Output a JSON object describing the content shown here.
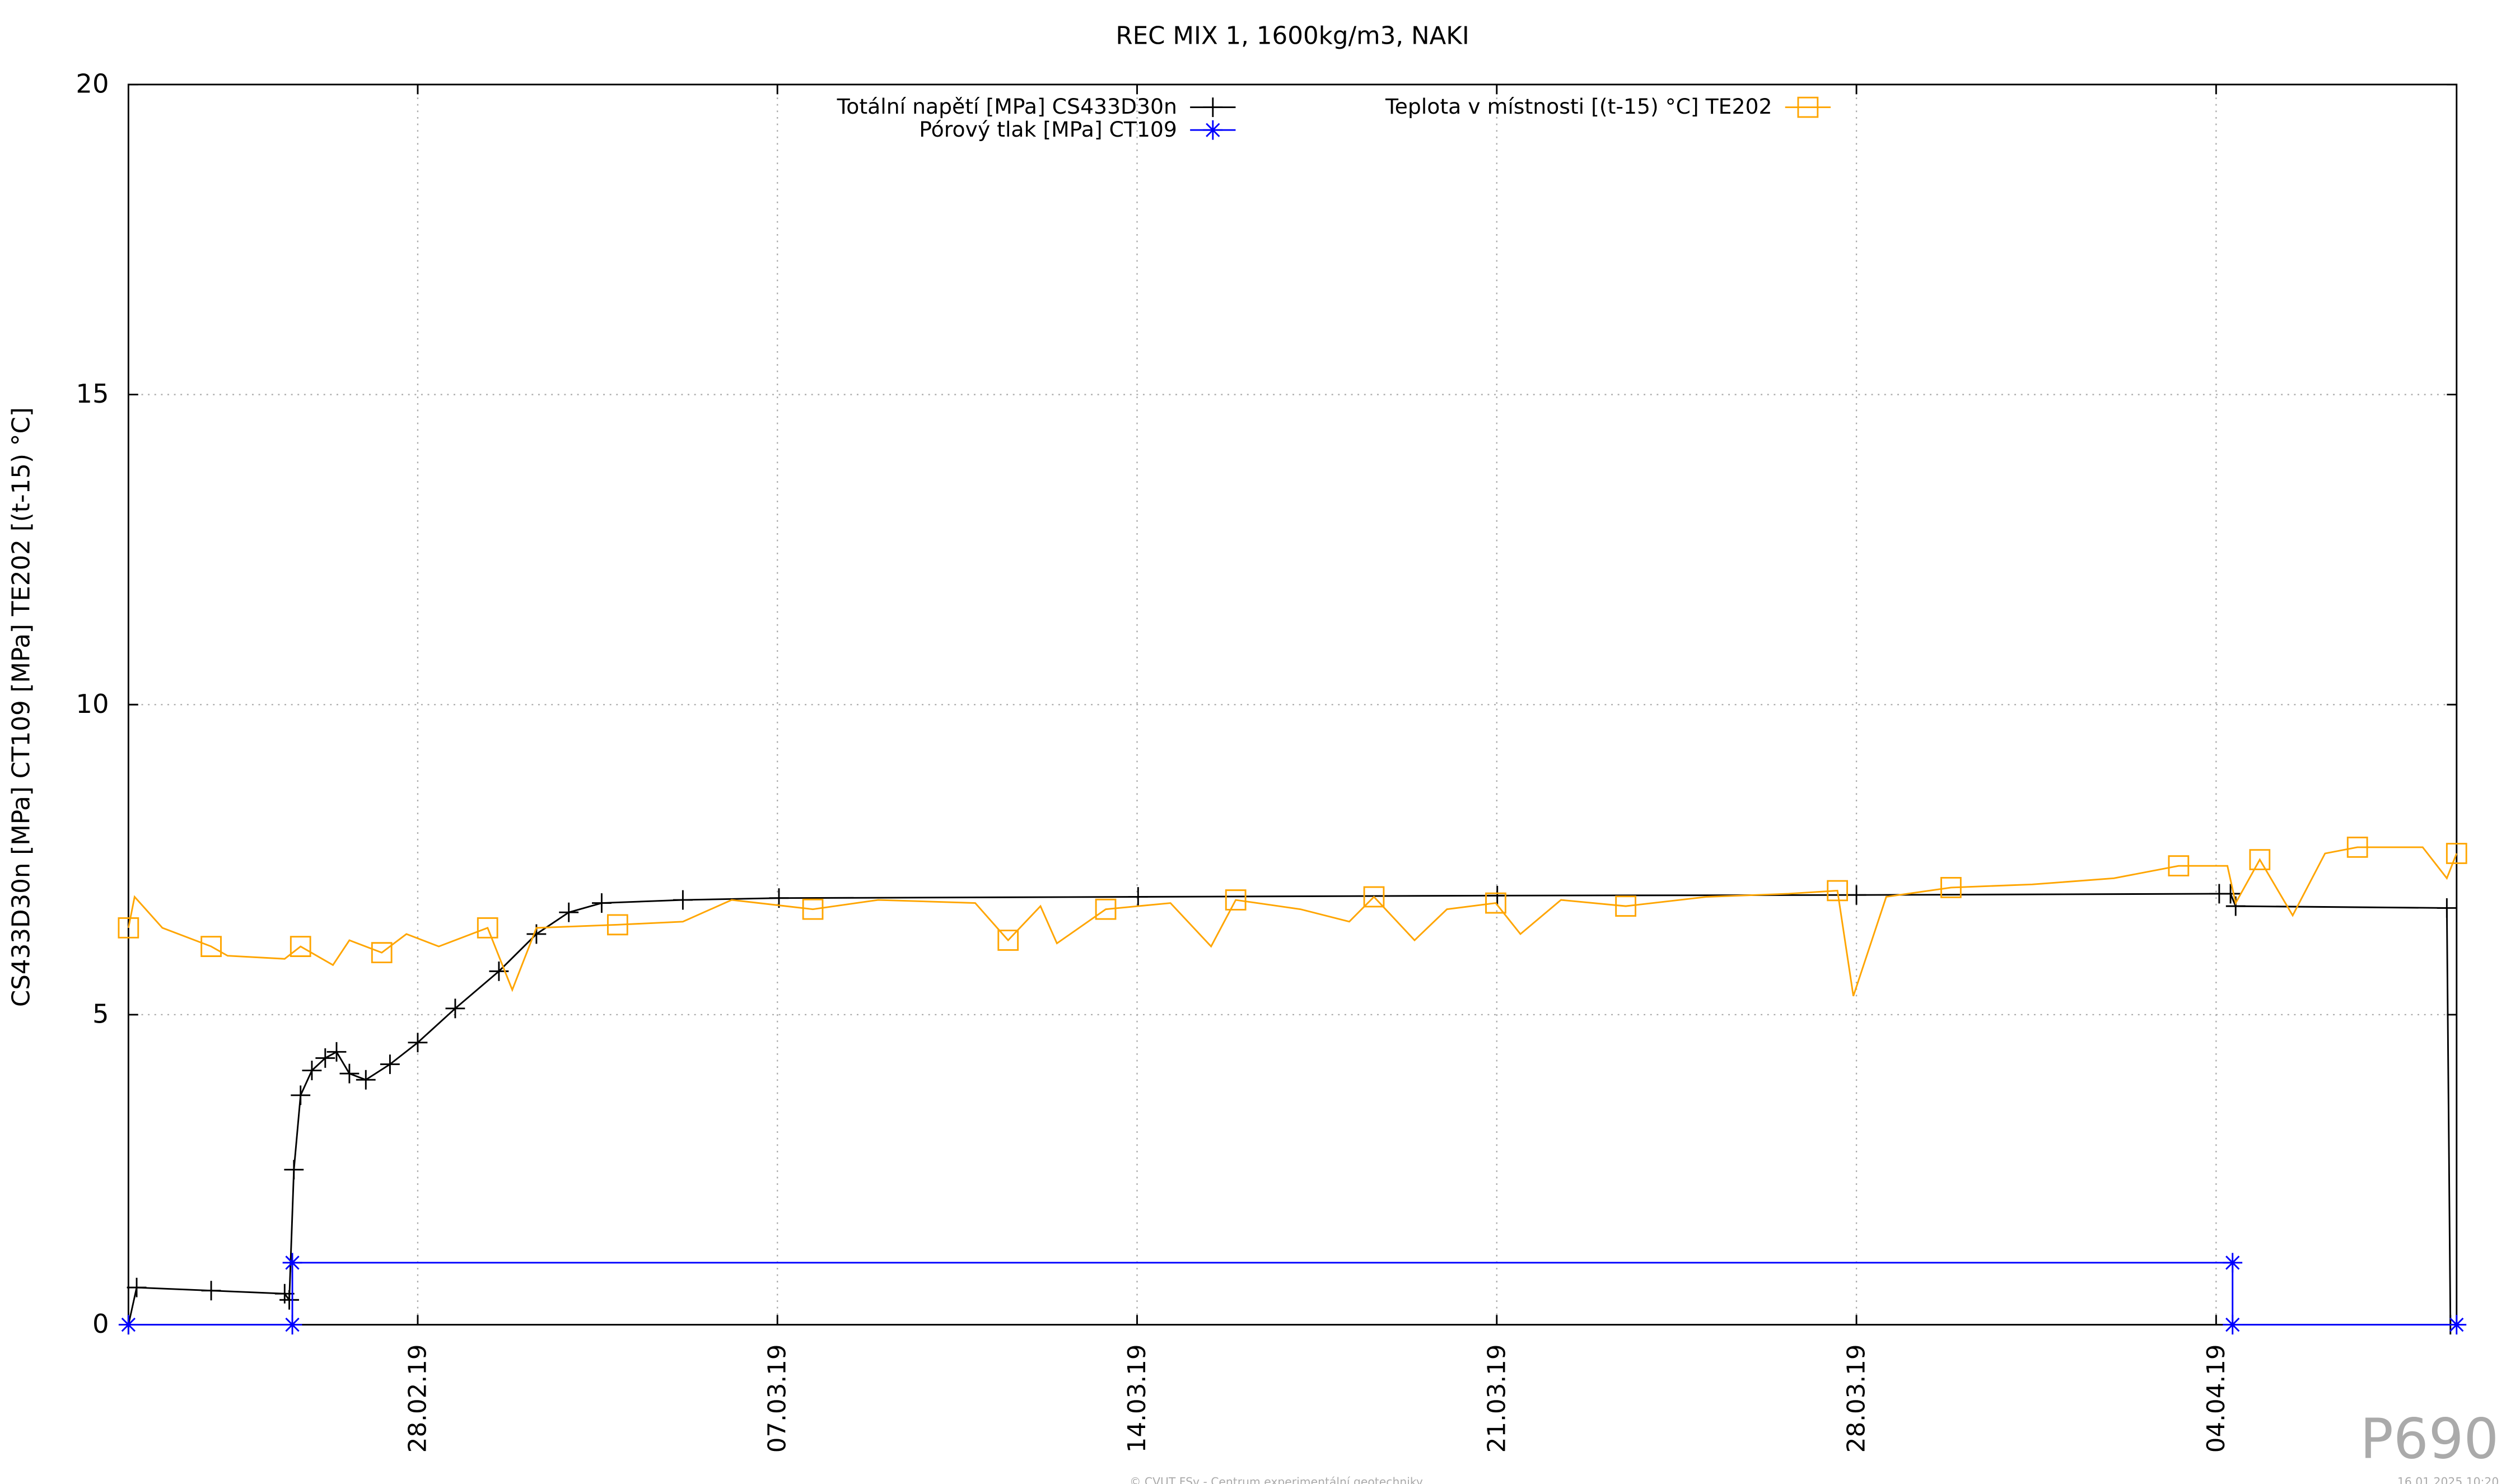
{
  "chart_data": {
    "type": "line",
    "title": "REC MIX 1, 1600kg/m3, NAKI",
    "ylabel": "CS433D30n [MPa] CT109 [MPa] TE202 [(t-15) °C]",
    "xlim": [
      -5.63,
      39.68
    ],
    "ylim": [
      0,
      20
    ],
    "xticks": [
      {
        "value": 0,
        "label": "28.02.19"
      },
      {
        "value": 7,
        "label": "07.03.19"
      },
      {
        "value": 14,
        "label": "14.03.19"
      },
      {
        "value": 21,
        "label": "21.03.19"
      },
      {
        "value": 28,
        "label": "28.03.19"
      },
      {
        "value": 35,
        "label": "04.04.19"
      }
    ],
    "yticks": [
      0,
      5,
      10,
      15,
      20
    ],
    "grid": true,
    "legend": "top",
    "series": [
      {
        "name": "Totální napětí [MPa] CS433D30n",
        "color": "#000000",
        "marker": "plus",
        "x": [
          -5.63,
          -5.47,
          -4.02,
          -2.59,
          -2.5,
          -2.41,
          -2.28,
          -2.06,
          -1.8,
          -1.58,
          -1.33,
          -1.01,
          -0.54,
          0,
          0.73,
          1.58,
          2.31,
          2.94,
          3.58,
          5.16,
          7.03,
          14.02,
          21.01,
          28.0,
          35.06,
          35.28,
          35.38,
          39.49,
          39.56
        ],
        "values": [
          0,
          0.6,
          0.55,
          0.5,
          0.4,
          2.5,
          3.7,
          4.1,
          4.3,
          4.4,
          4.05,
          3.95,
          4.2,
          4.55,
          5.1,
          5.7,
          6.3,
          6.65,
          6.8,
          6.85,
          6.88,
          6.9,
          6.92,
          6.93,
          6.95,
          6.95,
          6.75,
          6.72,
          0
        ]
      },
      {
        "name": "Pórový tlak [MPa] CT109",
        "color": "#0000ff",
        "marker": "star",
        "x": [
          -5.63,
          -2.44,
          -2.44,
          35.32,
          35.32,
          39.68
        ],
        "values": [
          0,
          0,
          1,
          1,
          0,
          0
        ]
      },
      {
        "name": "Teplota v místnosti [(t-15) °C] TE202",
        "color": "#ffa500",
        "marker": "square",
        "x": [
          -5.63,
          -5.51,
          -4.97,
          -4.02,
          -3.7,
          -2.59,
          -2.28,
          -1.65,
          -1.33,
          -0.7,
          -0.22,
          0.41,
          1.36,
          1.84,
          2.31,
          3.89,
          5.16,
          6.11,
          7.69,
          8.96,
          10.85,
          11.49,
          12.12,
          12.44,
          13.39,
          14.65,
          15.44,
          15.92,
          17.18,
          18.13,
          18.61,
          19.4,
          20.03,
          20.98,
          21.46,
          22.25,
          23.51,
          25.09,
          26.68,
          27.63,
          27.94,
          28.58,
          29.84,
          31.42,
          33.01,
          34.27,
          35.22,
          35.38,
          35.85,
          36.49,
          37.12,
          37.75,
          39.02,
          39.49,
          39.68
        ],
        "values": [
          6.4,
          6.9,
          6.4,
          6.1,
          5.95,
          5.9,
          6.1,
          5.8,
          6.2,
          6.0,
          6.3,
          6.1,
          6.4,
          5.4,
          6.4,
          6.45,
          6.5,
          6.85,
          6.7,
          6.85,
          6.8,
          6.2,
          6.75,
          6.15,
          6.7,
          6.8,
          6.1,
          6.85,
          6.7,
          6.5,
          6.9,
          6.2,
          6.7,
          6.8,
          6.3,
          6.85,
          6.75,
          6.9,
          6.95,
          7.0,
          5.3,
          6.9,
          7.05,
          7.1,
          7.2,
          7.4,
          7.4,
          6.8,
          7.5,
          6.6,
          7.6,
          7.7,
          7.7,
          7.2,
          7.6
        ]
      }
    ],
    "watermark": "P690",
    "footer": "© CVUT FSv - Centrum experimentální geotechniky",
    "timestamp": "16.01.2025 10:20"
  }
}
